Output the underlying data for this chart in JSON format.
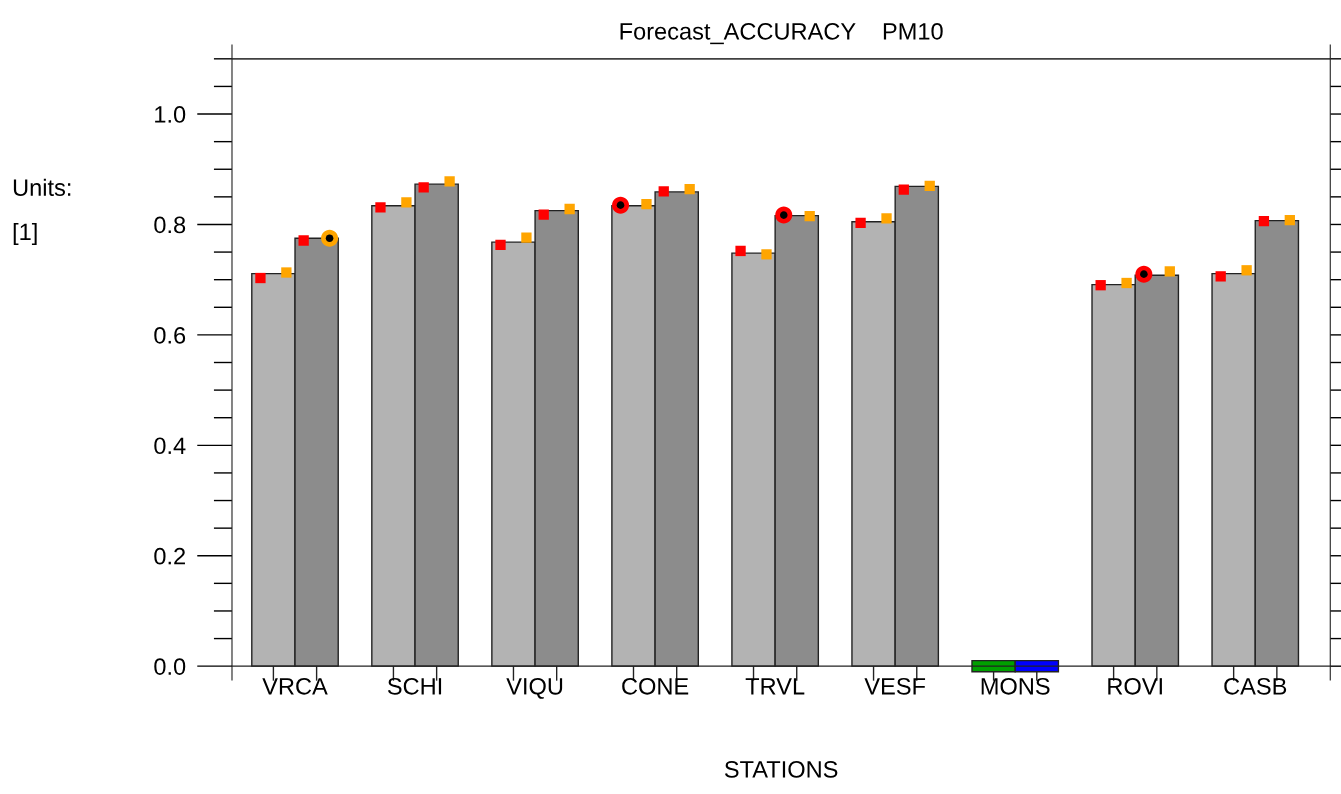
{
  "chart_data": {
    "type": "bar",
    "title": "Forecast_ACCURACY    PM10",
    "xlabel": "STATIONS",
    "ylabel": "Units:\n[1]",
    "categories": [
      "VRCA",
      "SCHI",
      "VIQU",
      "CONE",
      "TRVL",
      "VESF",
      "MONS",
      "ROVI",
      "CASB"
    ],
    "ylim": [
      -0.025,
      1.125
    ],
    "yticks": [
      {
        "value": 0,
        "label": "0.0"
      },
      {
        "value": 0.2,
        "label": "0.2"
      },
      {
        "value": 0.4,
        "label": "0.4"
      },
      {
        "value": 0.6,
        "label": "0.6"
      },
      {
        "value": 0.8,
        "label": "0.8"
      },
      {
        "value": 1.0,
        "label": "1.0"
      }
    ],
    "ref_lines": [
      {
        "axis": "y",
        "value": 1.1,
        "color": "#404040"
      }
    ],
    "series": [
      {
        "colors": [
          "#b3b3b3",
          "#b3b3b3",
          "#b3b3b3",
          "#b3b3b3",
          "#b3b3b3",
          "#b3b3b3",
          "#00a000",
          "#b3b3b3",
          "#b3b3b3"
        ],
        "values": [
          0.711,
          0.834,
          0.768,
          0.834,
          0.748,
          0.805,
          null,
          0.691,
          0.711
        ]
      },
      {
        "colors": [
          "#8c8c8c",
          "#8c8c8c",
          "#8c8c8c",
          "#8c8c8c",
          "#8c8c8c",
          "#8c8c8c",
          "#0000ff",
          "#8c8c8c",
          "#8c8c8c"
        ],
        "values": [
          0.775,
          0.873,
          0.825,
          0.859,
          0.816,
          0.869,
          null,
          0.708,
          0.807
        ]
      },
      {
        "type": "scatter",
        "marker": "square",
        "color": "#ff0000",
        "values": [
          0.703,
          0.831,
          0.763,
          null,
          0.752,
          0.803,
          null,
          0.69,
          0.706
        ]
      },
      {
        "type": "scatter",
        "marker": "square",
        "color": "#ffa500",
        "values": [
          0.713,
          0.84,
          0.776,
          0.837,
          0.746,
          0.811,
          null,
          0.694,
          0.717
        ]
      },
      {
        "type": "scatter",
        "marker": "square",
        "color": "#ff0000",
        "values": [
          0.771,
          0.867,
          0.818,
          0.86,
          null,
          0.863,
          null,
          null,
          0.806
        ]
      },
      {
        "type": "scatter",
        "marker": "square",
        "color": "#ffa500",
        "values": [
          null,
          0.878,
          0.828,
          0.864,
          0.815,
          0.87,
          null,
          0.715,
          0.808
        ]
      },
      {
        "type": "scatter",
        "marker": "circle",
        "color": "#ff0000",
        "values": [
          null,
          null,
          null,
          0.835,
          null,
          null,
          null,
          null,
          null
        ]
      },
      {
        "type": "scatter",
        "marker": "circle",
        "color": "#ffa500",
        "values": [
          0.775,
          null,
          null,
          null,
          null,
          null,
          null,
          null,
          null
        ]
      },
      {
        "type": "scatter",
        "marker": "circle",
        "color": "#ff0000",
        "values": [
          null,
          null,
          null,
          null,
          0.817,
          null,
          null,
          0.71,
          null
        ]
      }
    ]
  }
}
